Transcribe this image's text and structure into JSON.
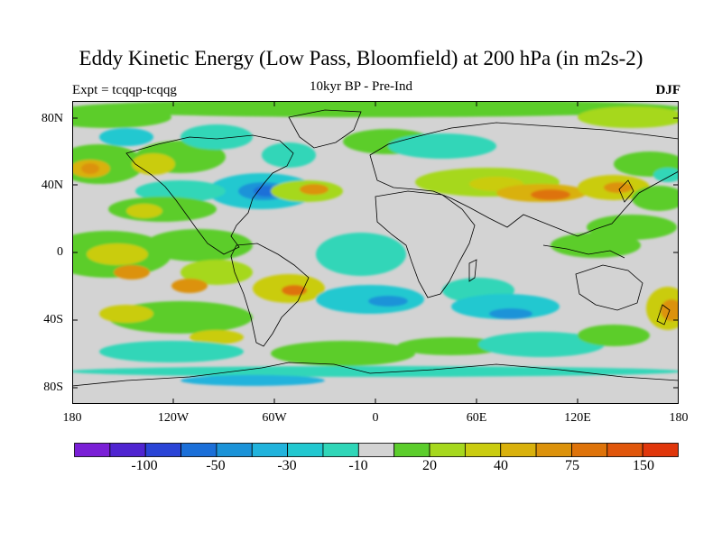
{
  "title": "Eddy Kinetic Energy (Low Pass, Bloomfield) at 200 hPa (in m2s-2)",
  "experiment": "Expt = tcqqp-tcqqg",
  "subtitle": "10kyr BP - Pre-Ind",
  "season": "DJF",
  "lat_labels": [
    "80N",
    "40N",
    "0",
    "40S",
    "80S"
  ],
  "lon_labels": [
    "180",
    "120W",
    "60W",
    "0",
    "60E",
    "120E",
    "180"
  ],
  "colorbar": {
    "colors": [
      "#7a1fd6",
      "#4f24d0",
      "#2a44d6",
      "#1b6fd8",
      "#1b93d8",
      "#21b3dc",
      "#22c8d0",
      "#30d6b8",
      "#d3d3d3",
      "#5ccd2c",
      "#a6d81e",
      "#cacc10",
      "#d9b10c",
      "#dc920b",
      "#de730a",
      "#e0560b",
      "#e0360b"
    ],
    "tick_labels": [
      "-100",
      "-50",
      "-30",
      "-10",
      "20",
      "40",
      "75",
      "150"
    ]
  },
  "legend_colors": {
    "background": "#d3d3d3",
    "land_outline": "#000000"
  }
}
